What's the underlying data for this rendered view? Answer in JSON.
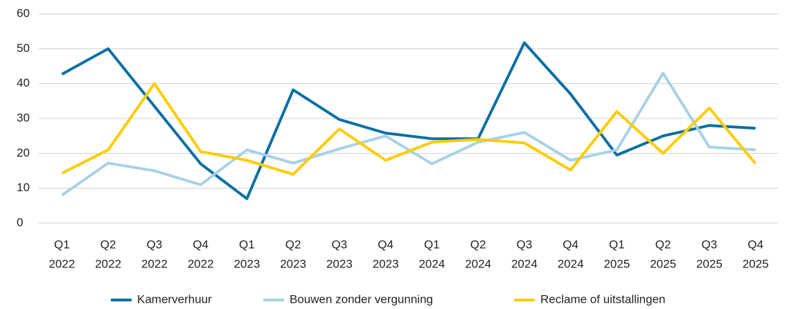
{
  "chart_data": {
    "type": "line",
    "categories": [
      [
        "Q1",
        "2022"
      ],
      [
        "Q2",
        "2022"
      ],
      [
        "Q3",
        "2022"
      ],
      [
        "Q4",
        "2022"
      ],
      [
        "Q1",
        "2023"
      ],
      [
        "Q2",
        "2023"
      ],
      [
        "Q3",
        "2023"
      ],
      [
        "Q4",
        "2023"
      ],
      [
        "Q1",
        "2024"
      ],
      [
        "Q2",
        "2024"
      ],
      [
        "Q3",
        "2024"
      ],
      [
        "Q4",
        "2024"
      ],
      [
        "Q1",
        "2025"
      ],
      [
        "Q2",
        "2025"
      ],
      [
        "Q3",
        "2025"
      ],
      [
        "Q4",
        "2025"
      ]
    ],
    "series": [
      {
        "name": "Kamerverhuur",
        "color": "#0a6fa3",
        "values": [
          42.7,
          50,
          33.5,
          17,
          7,
          38.2,
          29.7,
          25.8,
          24.2,
          24.2,
          51.7,
          37,
          19.5,
          25,
          28,
          27.2
        ]
      },
      {
        "name": "Bouwen zonder vergunning",
        "color": "#a8d1e7",
        "values": [
          8,
          17.2,
          15,
          11,
          21,
          17.2,
          21.3,
          25,
          17,
          23.2,
          26,
          18,
          21,
          43,
          21.8,
          21
        ]
      },
      {
        "name": "Reclame of uitstallingen",
        "color": "#ffcc00",
        "values": [
          14.3,
          21,
          40,
          20.5,
          18,
          14,
          27,
          18,
          23.2,
          24,
          23,
          15.2,
          32,
          20,
          33,
          17
        ]
      }
    ],
    "ylim": [
      0,
      60
    ],
    "yticks": [
      0,
      10,
      20,
      30,
      40,
      50,
      60
    ],
    "grid": true,
    "legend": "bottom"
  }
}
